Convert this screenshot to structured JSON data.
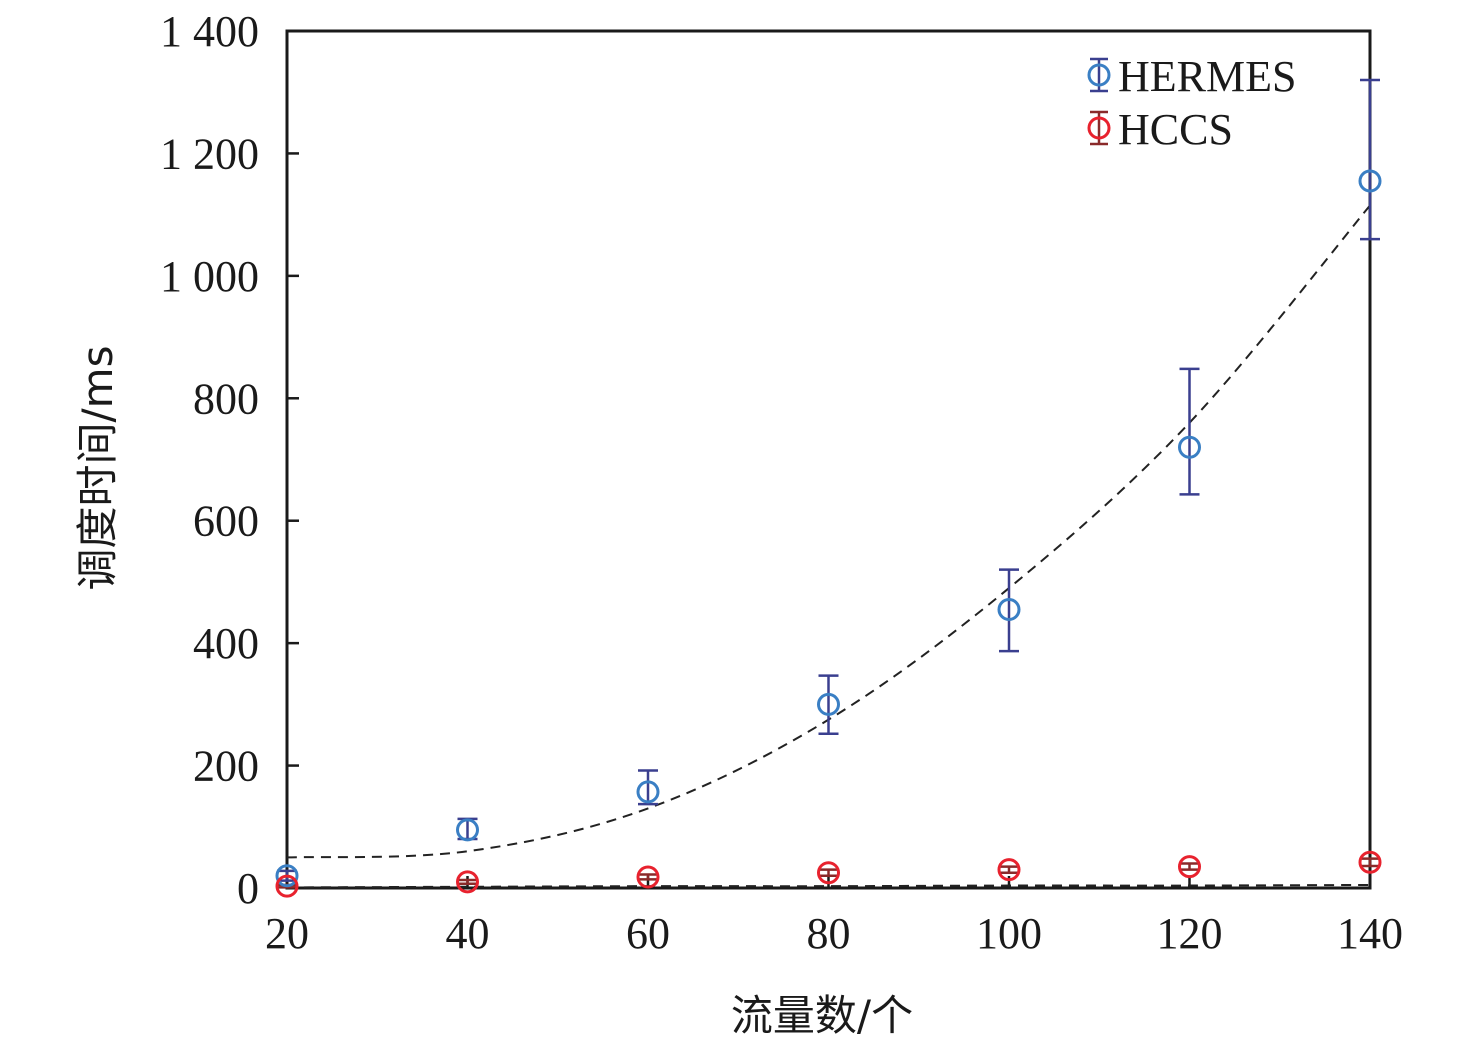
{
  "chart_data": {
    "type": "scatter",
    "xlabel": "流量数/个",
    "ylabel": "调度时间/ms",
    "xlim": [
      20,
      140
    ],
    "ylim": [
      0,
      1400
    ],
    "x_ticks": [
      20,
      40,
      60,
      80,
      100,
      120,
      140
    ],
    "x_tick_labels": [
      "20",
      "40",
      "60",
      "80",
      "100",
      "120",
      "140"
    ],
    "y_ticks": [
      0,
      200,
      400,
      600,
      800,
      1000,
      1200,
      1400
    ],
    "y_tick_labels": [
      "0",
      "200",
      "400",
      "600",
      "800",
      "1 000",
      "1 200",
      "1 400"
    ],
    "grid": false,
    "legend_position": "top-right",
    "x": [
      20,
      40,
      60,
      80,
      100,
      120,
      140
    ],
    "series": [
      {
        "name": "HERMES",
        "color": "#3a7fc4",
        "errorbar_color": "#3a3f8f",
        "values": [
          20,
          95,
          157,
          300,
          455,
          720,
          1155
        ],
        "error_low": [
          8,
          15,
          20,
          48,
          68,
          77,
          95
        ],
        "error_high": [
          8,
          18,
          35,
          47,
          65,
          128,
          165
        ],
        "trend_color": "#222222",
        "trend": [
          50,
          60,
          130,
          275,
          490,
          760,
          1115
        ]
      },
      {
        "name": "HCCS",
        "color": "#e8222e",
        "errorbar_color": "#8a2a2a",
        "values": [
          3,
          10,
          18,
          25,
          30,
          35,
          42
        ],
        "error_low": [
          2,
          3,
          4,
          5,
          5,
          5,
          6
        ],
        "error_high": [
          2,
          3,
          4,
          5,
          5,
          5,
          6
        ],
        "trend_color": "#222222",
        "trend": [
          1,
          2,
          3,
          3,
          4,
          4,
          5
        ]
      }
    ]
  }
}
